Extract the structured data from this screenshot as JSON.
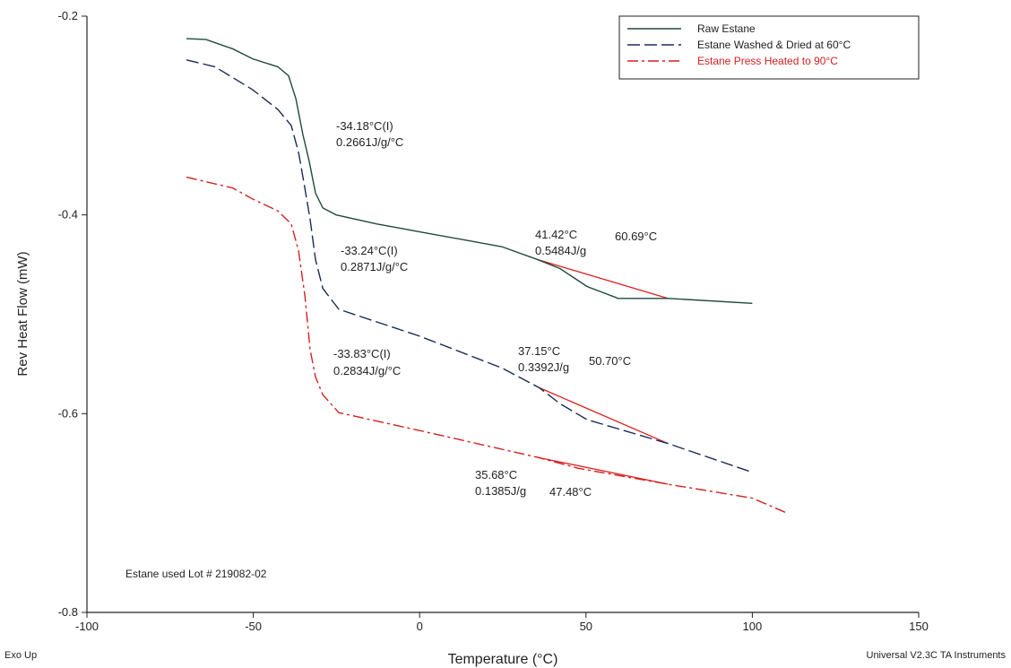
{
  "chart_data": {
    "type": "line",
    "x_label": "Temperature (°C)",
    "y_label": "Rev Heat Flow (mW)",
    "xlim": [
      -100,
      150
    ],
    "xticks": [
      -100,
      -50,
      0,
      50,
      100,
      150
    ],
    "ylim": [
      -0.8,
      -0.2
    ],
    "yticks": [
      -0.8,
      -0.6,
      -0.4,
      -0.2
    ],
    "legend": "top-right",
    "series": [
      {
        "name": "Raw Estane",
        "color": "#1f4a3a",
        "dash": "solid",
        "x": [
          -70.1,
          -64.2,
          -56.1,
          -50.2,
          -42.6,
          -39.4,
          -37.2,
          -35.1,
          -33.2,
          -31.3,
          -29.1,
          -25.1,
          -13,
          0,
          24.7,
          35.5,
          42.2,
          50.3,
          59.7,
          74.6,
          100
        ],
        "values": [
          -0.2226,
          -0.2235,
          -0.233,
          -0.243,
          -0.251,
          -0.26,
          -0.283,
          -0.319,
          -0.346,
          -0.378,
          -0.393,
          -0.4,
          -0.409,
          -0.417,
          -0.432,
          -0.445,
          -0.454,
          -0.472,
          -0.484,
          -0.484,
          -0.489
        ]
      },
      {
        "name": "Estane Washed & Dried at 60°C",
        "color": "#1a2a55",
        "dash": "dashed",
        "x": [
          -70.1,
          -61.5,
          -50.2,
          -42.6,
          -38.6,
          -36.4,
          -34.5,
          -32.9,
          -31.3,
          -29.1,
          -24.3,
          0,
          24.7,
          36,
          42.2,
          50.3,
          74.6,
          100
        ],
        "values": [
          -0.244,
          -0.251,
          -0.274,
          -0.294,
          -0.31,
          -0.337,
          -0.373,
          -0.405,
          -0.445,
          -0.474,
          -0.495,
          -0.522,
          -0.554,
          -0.574,
          -0.59,
          -0.606,
          -0.63,
          -0.659
        ]
      },
      {
        "name": "Estane Press Heated to 90°C",
        "color": "#d42020",
        "dash": "dashdot",
        "x": [
          -70.1,
          -56.1,
          -50.2,
          -42.6,
          -38.6,
          -36.4,
          -34.5,
          -32.9,
          -31.3,
          -29.1,
          -24.3,
          0,
          35.5,
          47.7,
          74.6,
          100,
          110.4
        ],
        "values": [
          -0.362,
          -0.373,
          -0.384,
          -0.396,
          -0.409,
          -0.436,
          -0.481,
          -0.536,
          -0.563,
          -0.581,
          -0.599,
          -0.617,
          -0.644,
          -0.655,
          -0.671,
          -0.685,
          -0.7
        ]
      }
    ],
    "construction_lines": {
      "color": "#e02020",
      "lines": [
        {
          "x": [
            35.5,
            74.6
          ],
          "values": [
            -0.445,
            -0.484
          ]
        },
        {
          "x": [
            36,
            74.6
          ],
          "values": [
            -0.574,
            -0.63
          ]
        },
        {
          "x": [
            35.5,
            74.6
          ],
          "values": [
            -0.644,
            -0.671
          ]
        }
      ]
    },
    "annotations": [
      "-34.18°C(I)",
      "0.2661J/g/°C",
      "-33.24°C(I)",
      "0.2871J/g/°C",
      "-33.83°C(I)",
      "0.2834J/g/°C",
      "41.42°C",
      "0.5484J/g",
      "60.69°C",
      "37.15°C",
      "0.3392J/g",
      "50.70°C",
      "35.68°C",
      "0.1385J/g",
      "47.48°C",
      "Estane used Lot # 219082-02"
    ],
    "footer_left": "Exo Up",
    "footer_right": "Universal V2.3C TA Instruments"
  }
}
